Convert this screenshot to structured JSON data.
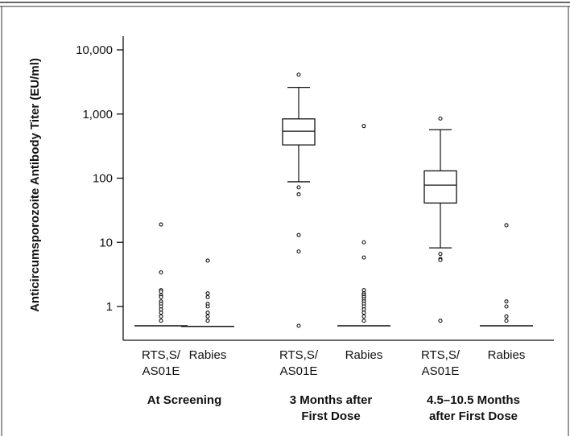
{
  "chart_data": {
    "type": "box",
    "title": "",
    "ylabel": "Anticircumsporozoite Antibody Titer (EU/ml)",
    "yscale": "log",
    "ylim": [
      0.38,
      13000
    ],
    "yticks": [
      {
        "value": 1,
        "label": "1"
      },
      {
        "value": 10,
        "label": "10"
      },
      {
        "value": 100,
        "label": "100"
      },
      {
        "value": 1000,
        "label": "1,000"
      },
      {
        "value": 10000,
        "label": "10,000"
      }
    ],
    "groups": [
      {
        "label": [
          "At Screening"
        ]
      },
      {
        "label": [
          "3 Months after",
          "First Dose"
        ]
      },
      {
        "label": [
          "4.5–10.5 Months",
          "after First Dose"
        ]
      }
    ],
    "series": [
      {
        "category": [
          "RTS,S/",
          "AS01E"
        ],
        "group": 0,
        "median": 0.5,
        "q1": 0.5,
        "q3": 0.5,
        "whisker_low": 0.5,
        "whisker_high": 0.5,
        "outliers": [
          19,
          3.4,
          1.8,
          1.7,
          1.5,
          1.4,
          1.2,
          1.1,
          1.0,
          0.9,
          0.8,
          0.7,
          0.6
        ]
      },
      {
        "category": [
          "Rabies"
        ],
        "group": 0,
        "median": 0.49,
        "q1": 0.49,
        "q3": 0.49,
        "whisker_low": 0.49,
        "whisker_high": 0.49,
        "outliers": [
          5.2,
          1.6,
          1.4,
          1.1,
          1.0,
          0.8,
          0.7,
          0.6
        ]
      },
      {
        "category": [
          "RTS,S/",
          "AS01E"
        ],
        "group": 1,
        "median": 540,
        "q1": 330,
        "q3": 840,
        "whisker_low": 88,
        "whisker_high": 2600,
        "outliers": [
          4100,
          72,
          56,
          13,
          7.2,
          0.5
        ]
      },
      {
        "category": [
          "Rabies"
        ],
        "group": 1,
        "median": 0.5,
        "q1": 0.5,
        "q3": 0.5,
        "whisker_low": 0.5,
        "whisker_high": 0.5,
        "outliers": [
          650,
          10,
          5.8,
          1.8,
          1.6,
          1.5,
          1.4,
          1.3,
          1.2,
          1.1,
          1.0,
          0.9,
          0.8,
          0.7,
          0.6
        ]
      },
      {
        "category": [
          "RTS,S/",
          "AS01E"
        ],
        "group": 2,
        "median": 78,
        "q1": 41,
        "q3": 130,
        "whisker_low": 8.2,
        "whisker_high": 570,
        "outliers": [
          850,
          6.6,
          5.5,
          5.3,
          0.6
        ]
      },
      {
        "category": [
          "Rabies"
        ],
        "group": 2,
        "median": 0.5,
        "q1": 0.5,
        "q3": 0.5,
        "whisker_low": 0.5,
        "whisker_high": 0.5,
        "outliers": [
          18.5,
          1.2,
          1.0,
          0.7,
          0.6
        ]
      }
    ]
  }
}
